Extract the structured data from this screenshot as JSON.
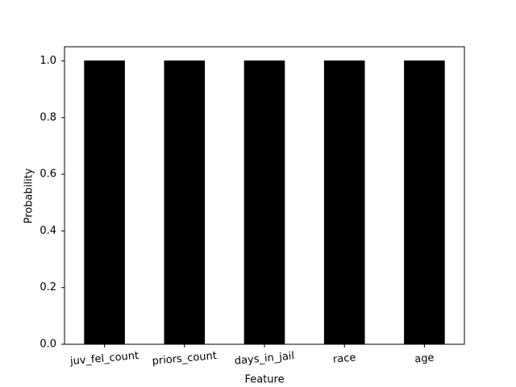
{
  "chart_data": {
    "type": "bar",
    "x_label": "Feature",
    "y_label": "Probability",
    "categories": [
      "juv_fel_count",
      "priors_count",
      "days_in_jail",
      "race",
      "age"
    ],
    "values": [
      1.0,
      1.0,
      1.0,
      1.0,
      1.0
    ],
    "color": "#000000",
    "ylim": [
      0,
      1.05
    ],
    "yticks": [
      {
        "value": 0,
        "label": "0.0"
      },
      0.2,
      0.4,
      0.6,
      0.8,
      {
        "value": 1,
        "label": "1.0"
      }
    ],
    "grid": false
  }
}
